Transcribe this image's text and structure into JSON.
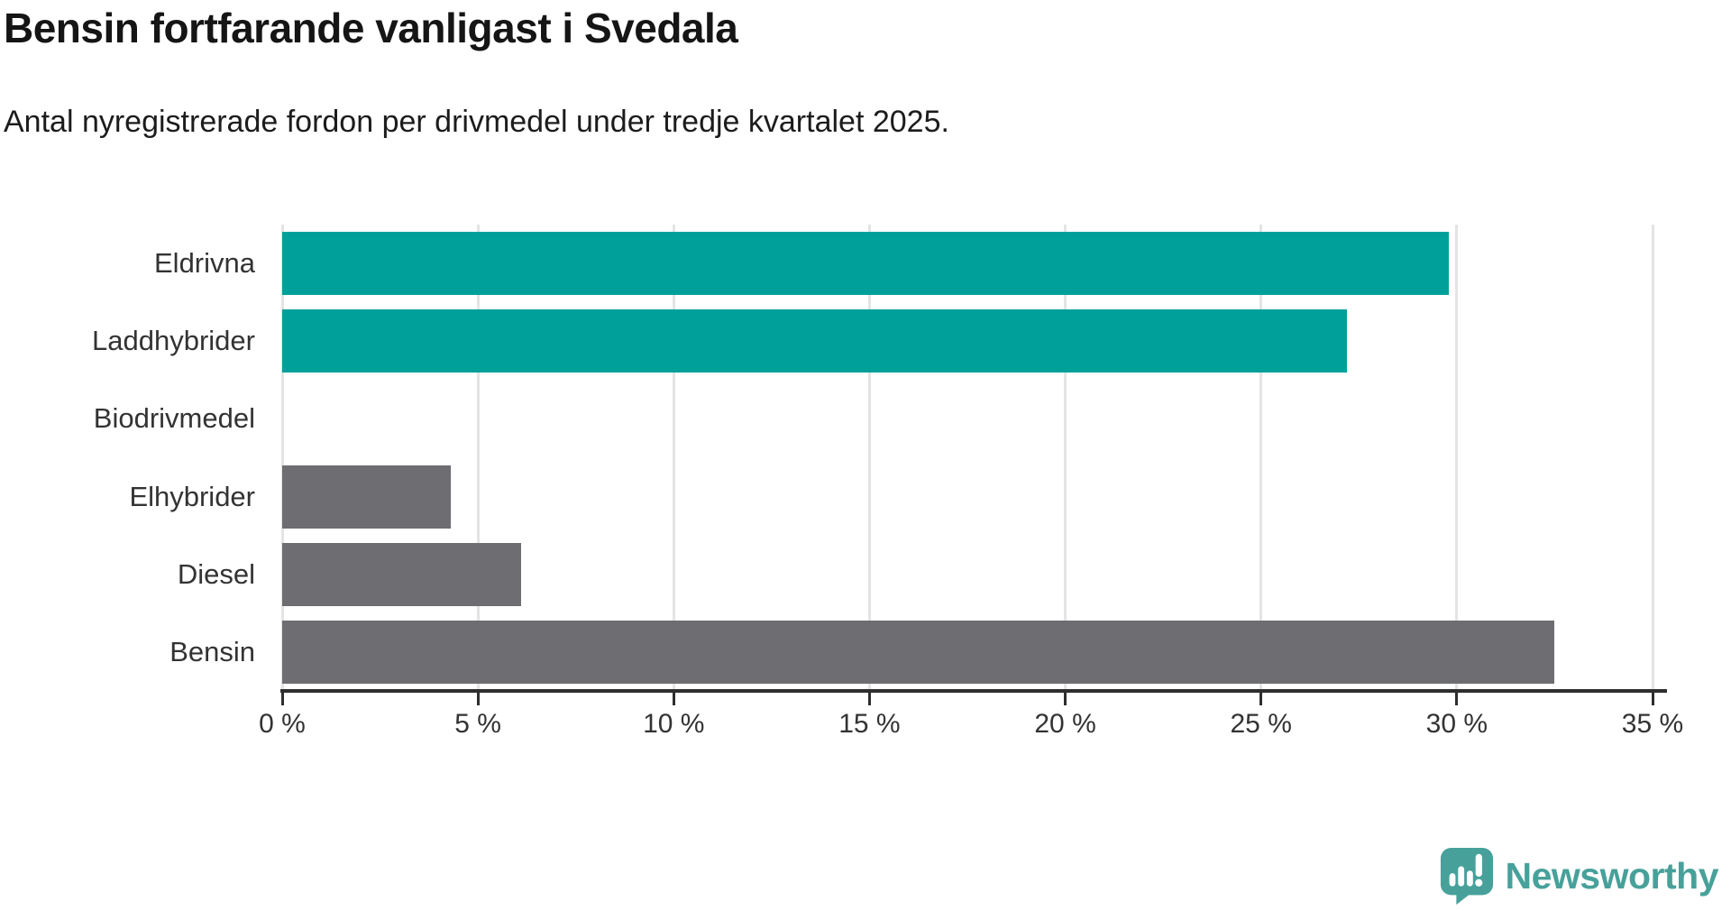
{
  "header": {
    "title": "Bensin fortfarande vanligast i Svedala",
    "subtitle": "Antal nyregistrerade fordon per drivmedel under tredje kvartalet 2025."
  },
  "chart_data": {
    "type": "bar",
    "orientation": "horizontal",
    "title": "Bensin fortfarande vanligast i Svedala",
    "subtitle": "Antal nyregistrerade fordon per drivmedel under tredje kvartalet 2025.",
    "categories": [
      "Eldrivna",
      "Laddhybrider",
      "Biodrivmedel",
      "Elhybrider",
      "Diesel",
      "Bensin"
    ],
    "values": [
      29.8,
      27.2,
      0,
      4.3,
      6.1,
      32.5
    ],
    "unit": "%",
    "xlim": [
      0,
      35
    ],
    "xticks": [
      0,
      5,
      10,
      15,
      20,
      25,
      30,
      35
    ],
    "xtick_labels": [
      "0 %",
      "5 %",
      "10 %",
      "15 %",
      "20 %",
      "25 %",
      "30 %",
      "35 %"
    ],
    "bar_colors": [
      "#00A09A",
      "#00A09A",
      "#6D6D72",
      "#6D6D72",
      "#6D6D72",
      "#6D6D72"
    ],
    "grid": true,
    "legend": "none"
  },
  "colors": {
    "highlight_teal": "#00A09A",
    "bar_gray": "#6D6D72",
    "gridline": "#E4E4E4",
    "axis": "#2E2E2E",
    "label_text": "#333333",
    "brand_teal": "#47A19A"
  },
  "footer": {
    "brand": "Newsworthy"
  }
}
